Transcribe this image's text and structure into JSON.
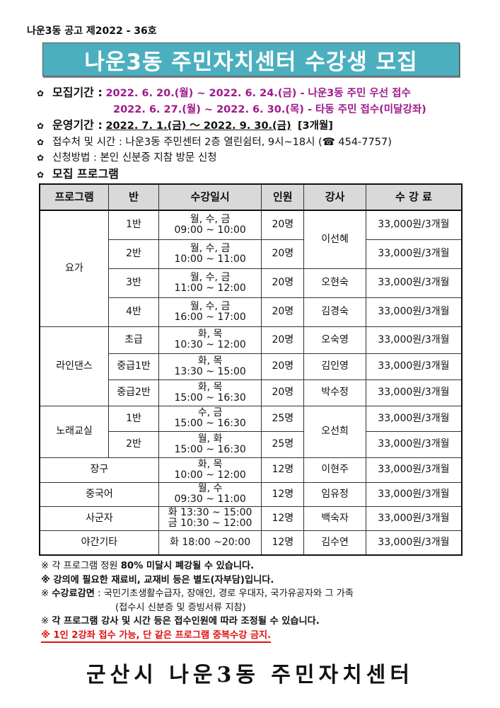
{
  "notice_number": "나운3동 공고 제2022 - 36호",
  "title": "나운3동 주민자치센터 수강생 모집",
  "bullet_icon": "flower-icon",
  "info": {
    "recruit_label": "모집기간 :",
    "recruit_line1": "2022. 6. 20.(월) ~ 2022. 6. 24.(금) - 나운3동 주민 우선 접수",
    "recruit_line2": "2022. 6. 27.(월) ~ 2022. 6. 30.(목) - 타동 주민 접수(미달강좌)",
    "operation_label": "운영기간 :",
    "operation_value": "2022. 7. 1.(금) ～ 2022. 9. 30.(금)",
    "operation_months": "[3개월]",
    "reception": "접수처 및 시간 : 나운3동 주민센터 2층 열린쉼터, 9시~18시 (☎ 454-7757)",
    "method": "신청방법 : 본인 신분증 지참 방문 신청",
    "program_heading": "모집 프로그램"
  },
  "table": {
    "headers": [
      "프로그램",
      "반",
      "수강일시",
      "인원",
      "강사",
      "수 강 료"
    ],
    "rows": [
      {
        "program": "요가",
        "program_span": 4,
        "class": "1반",
        "days": "월, 수, 금",
        "time": "09:00 ~ 10:00",
        "capacity": "20명",
        "teacher": "이선혜",
        "teacher_span": 2,
        "fee": "33,000원/3개월"
      },
      {
        "class": "2반",
        "days": "월, 수, 금",
        "time": "10:00 ~ 11:00",
        "capacity": "20명",
        "fee": "33,000원/3개월"
      },
      {
        "class": "3반",
        "days": "월, 수, 금",
        "time": "11:00 ~ 12:00",
        "capacity": "20명",
        "teacher": "오현숙",
        "teacher_span": 1,
        "fee": "33,000원/3개월"
      },
      {
        "class": "4반",
        "days": "월, 수, 금",
        "time": "16:00 ~ 17:00",
        "capacity": "20명",
        "teacher": "김경숙",
        "teacher_span": 1,
        "fee": "33,000원/3개월"
      },
      {
        "program": "라인댄스",
        "program_span": 3,
        "class": "초급",
        "days": "화, 목",
        "time": "10:30 ~ 12:00",
        "capacity": "20명",
        "teacher": "오숙영",
        "teacher_span": 1,
        "fee": "33,000원/3개월"
      },
      {
        "class": "중급1반",
        "days": "화, 목",
        "time": "13:30 ~ 15:00",
        "capacity": "20명",
        "teacher": "김인영",
        "teacher_span": 1,
        "fee": "33,000원/3개월"
      },
      {
        "class": "중급2반",
        "days": "화, 목",
        "time": "15:00 ~ 16:30",
        "capacity": "20명",
        "teacher": "박수정",
        "teacher_span": 1,
        "fee": "33,000원/3개월"
      },
      {
        "program": "노래교실",
        "program_span": 2,
        "class": "1반",
        "days": "수, 금",
        "time": "15:00 ~ 16:30",
        "capacity": "25명",
        "teacher": "오선희",
        "teacher_span": 2,
        "fee": "33,000원/3개월"
      },
      {
        "class": "2반",
        "days": "월, 화",
        "time": "15:00 ~ 16:30",
        "capacity": "25명",
        "fee": "33,000원/3개월"
      },
      {
        "program": "장구",
        "program_span": 1,
        "merged": true,
        "days": "화, 목",
        "time": "10:00 ~ 12:00",
        "capacity": "12명",
        "teacher": "이현주",
        "teacher_span": 1,
        "fee": "33,000원/3개월"
      },
      {
        "program": "중국어",
        "program_span": 1,
        "merged": true,
        "days": "월, 수",
        "time": "09:30 ~ 11:00",
        "capacity": "12명",
        "teacher": "임유정",
        "teacher_span": 1,
        "fee": "33,000원/3개월"
      },
      {
        "program": "사군자",
        "program_span": 1,
        "merged": true,
        "days": "화 13:30 ~ 15:00",
        "time": "금 10:30 ~ 12:00",
        "capacity": "12명",
        "teacher": "백숙자",
        "teacher_span": 1,
        "fee": "33,000원/3개월"
      },
      {
        "program": "야간기타",
        "program_span": 1,
        "merged": true,
        "days": "화 18:00 ~20:00",
        "capacity": "12명",
        "teacher": "김수연",
        "teacher_span": 1,
        "fee": "33,000원/3개월"
      }
    ]
  },
  "notes": {
    "n1_prefix": "※ 각 프로그램 정원 ",
    "n1_bold": "80% 미달시 폐강될 수 있습니다.",
    "n2": "※ 강의에 필요한 재료비, 교재비 등은 별도(자부담)입니다.",
    "n3_prefix": "※ ",
    "n3_bold": "수강료감면",
    "n3_rest": " : 국민기초생활수급자, 장애인, 경로 우대자, 국가유공자와 그 가족",
    "n3_line2": "(접수시 신분증 및 증빙서류 지참)",
    "n4_prefix": "※ ",
    "n4_bold": "각 프로그램 강사 및 시간 등은 접수인원에 따라 조정될 수 있습니다.",
    "n5": "※ 1인 2강좌 접수 가능, 단 같은 프로그램 중복수강 금지."
  },
  "footer": "군산시 나운3동 주민자치센터",
  "colors": {
    "title_bg": "#4bafbf",
    "purple": "#a0198c",
    "red": "#e01010",
    "header_bg": "#d9d9d9"
  }
}
